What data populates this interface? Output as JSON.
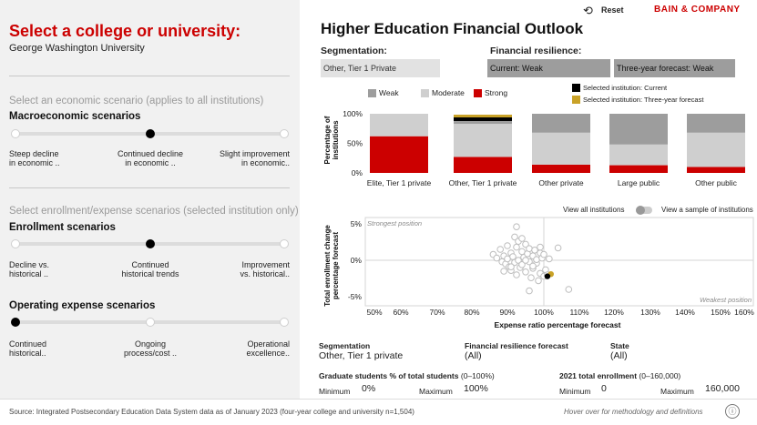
{
  "header": {
    "reset_label": "Reset",
    "brand": "BAIN & COMPANY",
    "brand_color": "#cc0000"
  },
  "left": {
    "title": "Select a college or university:",
    "institution": "George Washington University",
    "econ_prompt": "Select an economic scenario (applies to all institutions)",
    "macro_title": "Macroeconomic scenarios",
    "macro_options": [
      {
        "line1": "Steep decline",
        "line2": "in economic .."
      },
      {
        "line1": "Continued decline",
        "line2": "in economic .."
      },
      {
        "line1": "Slight improvement",
        "line2": "in economic.."
      }
    ],
    "macro_selected": 1,
    "enroll_prompt": "Select enrollment/expense scenarios (selected institution only)",
    "enroll_title": "Enrollment scenarios",
    "enroll_options": [
      {
        "line1": "Decline vs.",
        "line2": "historical .."
      },
      {
        "line1": "Continued",
        "line2": "historical trends"
      },
      {
        "line1": "Improvement",
        "line2": "vs. historical.."
      }
    ],
    "enroll_selected": 1,
    "opex_title": "Operating expense scenarios",
    "opex_options": [
      {
        "line1": "Continued",
        "line2": "historical.."
      },
      {
        "line1": "Ongoing",
        "line2": "process/cost .."
      },
      {
        "line1": "Operational",
        "line2": "excellence.."
      }
    ],
    "opex_selected": 0
  },
  "right": {
    "title": "Higher Education Financial Outlook",
    "segmentation_label": "Segmentation:",
    "segmentation_value": "Other, Tier 1 Private",
    "resilience_label": "Financial resilience:",
    "current_value": "Current: Weak",
    "forecast_value": "Three-year forecast: Weak",
    "legend": {
      "weak": "Weak",
      "moderate": "Moderate",
      "strong": "Strong",
      "selected_current": "Selected institution: Current",
      "selected_forecast": "Selected institution: Three-year forecast"
    },
    "colors": {
      "weak": "#9d9d9d",
      "moderate": "#cfcfcf",
      "strong": "#cc0000",
      "current": "#000000",
      "forecast": "#c9a227"
    },
    "toggle_left": "View all institutions",
    "toggle_right": "View a sample of institutions",
    "strongest": "Strongest position",
    "weakest": "Weakest position"
  },
  "chart_data": [
    {
      "type": "bar",
      "stacked": true,
      "ylabel": "Percentage of institutions",
      "yticks": [
        "100%",
        "50%",
        "0%"
      ],
      "ylim": [
        0,
        100
      ],
      "categories": [
        "Elite, Tier 1 private",
        "Other, Tier 1 private",
        "Other private",
        "Large public",
        "Other public"
      ],
      "series": [
        {
          "name": "Strong",
          "values": [
            62,
            27,
            14,
            13,
            10
          ]
        },
        {
          "name": "Moderate",
          "values": [
            38,
            56,
            54,
            35,
            58
          ]
        },
        {
          "name": "Weak",
          "values": [
            0,
            10,
            32,
            52,
            32
          ]
        }
      ],
      "selected_markers": {
        "current_on": "Other, Tier 1 private",
        "forecast_on": "Other, Tier 1 private"
      }
    },
    {
      "type": "scatter",
      "xlabel": "Expense ratio percentage forecast",
      "ylabel": "Total enrollment change percentage forecast",
      "xticks": [
        "50%",
        "60%",
        "70%",
        "80%",
        "90%",
        "100%",
        "110%",
        "120%",
        "130%",
        "140%",
        "150%",
        "160%"
      ],
      "yticks": [
        "5%",
        "0%",
        "-5%"
      ],
      "xlim": [
        50,
        160
      ],
      "ylim": [
        -6,
        6
      ],
      "points": [
        [
          86,
          0.8
        ],
        [
          87,
          0.3
        ],
        [
          88,
          1.5
        ],
        [
          88.5,
          -0.2
        ],
        [
          89,
          0.6
        ],
        [
          89.5,
          -0.5
        ],
        [
          90,
          2.0
        ],
        [
          90,
          0.2
        ],
        [
          90.5,
          -0.9
        ],
        [
          91,
          1.0
        ],
        [
          91,
          -1.4
        ],
        [
          91.5,
          0.5
        ],
        [
          92,
          3.2
        ],
        [
          92,
          -0.3
        ],
        [
          92.5,
          1.8
        ],
        [
          92.5,
          -2.0
        ],
        [
          93,
          0.0
        ],
        [
          93,
          2.6
        ],
        [
          93.5,
          -1.0
        ],
        [
          94,
          1.2
        ],
        [
          94,
          -0.6
        ],
        [
          94.5,
          0.4
        ],
        [
          95,
          2.2
        ],
        [
          95,
          -1.6
        ],
        [
          95.5,
          0.9
        ],
        [
          96,
          -0.2
        ],
        [
          96,
          1.6
        ],
        [
          96.5,
          -2.4
        ],
        [
          97,
          0.6
        ],
        [
          97,
          -1.1
        ],
        [
          97.5,
          1.4
        ],
        [
          98,
          -0.4
        ],
        [
          98,
          0.1
        ],
        [
          98.5,
          -2.8
        ],
        [
          99,
          1.0
        ],
        [
          99,
          -1.8
        ],
        [
          99.5,
          0.3
        ],
        [
          100,
          -2.2
        ],
        [
          100,
          0.8
        ],
        [
          100.5,
          -1.3
        ],
        [
          101,
          -2.0
        ],
        [
          101.5,
          0.2
        ],
        [
          96,
          -4.2
        ],
        [
          92.5,
          4.6
        ],
        [
          104,
          1.7
        ],
        [
          107,
          -4.0
        ],
        [
          99,
          1.8
        ],
        [
          94,
          3.0
        ],
        [
          91,
          -0.9
        ],
        [
          97,
          -0.8
        ],
        [
          95,
          0.0
        ],
        [
          89,
          -1.5
        ]
      ],
      "selected_current": [
        101,
        -2.2
      ],
      "selected_forecast": [
        102,
        -1.9
      ]
    }
  ],
  "filters": {
    "seg_label": "Segmentation",
    "seg_value": "Other, Tier 1 private",
    "res_label": "Financial resilience forecast",
    "res_value": "(All)",
    "state_label": "State",
    "state_value": "(All)",
    "grad_label": "Graduate students % of total students",
    "grad_range": "(0–100%)",
    "grad_min_label": "Minimum",
    "grad_min": "0%",
    "grad_max_label": "Maximum",
    "grad_max": "100%",
    "enroll_label": "2021 total enrollment",
    "enroll_range": "(0–160,000)",
    "enroll_min_label": "Minimum",
    "enroll_min": "0",
    "enroll_max_label": "Maximum",
    "enroll_max": "160,000"
  },
  "footer": {
    "source": "Source: Integrated Postsecondary Education Data System data as of January 2023 (four-year college and university n=1,504)",
    "hover": "Hover over for methodology and definitions"
  }
}
